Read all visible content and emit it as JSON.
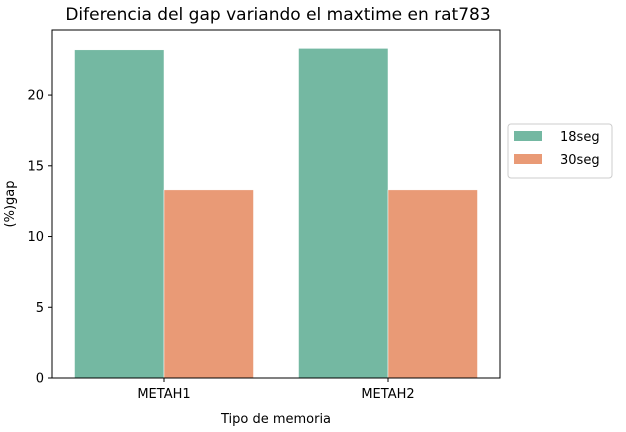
{
  "chart_data": {
    "type": "bar",
    "title": "Diferencia del gap variando el maxtime en rat783",
    "xlabel": "Tipo de memoria",
    "ylabel": "(%)gap",
    "categories": [
      "METAH1",
      "METAH2"
    ],
    "series": [
      {
        "name": "18seg",
        "color": "#74b8a2",
        "values": [
          23.2,
          23.3
        ]
      },
      {
        "name": "30seg",
        "color": "#e99a76",
        "values": [
          13.3,
          13.3
        ]
      }
    ],
    "yticks": [
      0,
      5,
      10,
      15,
      20
    ],
    "ylim": [
      0,
      24.6
    ],
    "grid": false,
    "legend_position": "outside-right"
  }
}
